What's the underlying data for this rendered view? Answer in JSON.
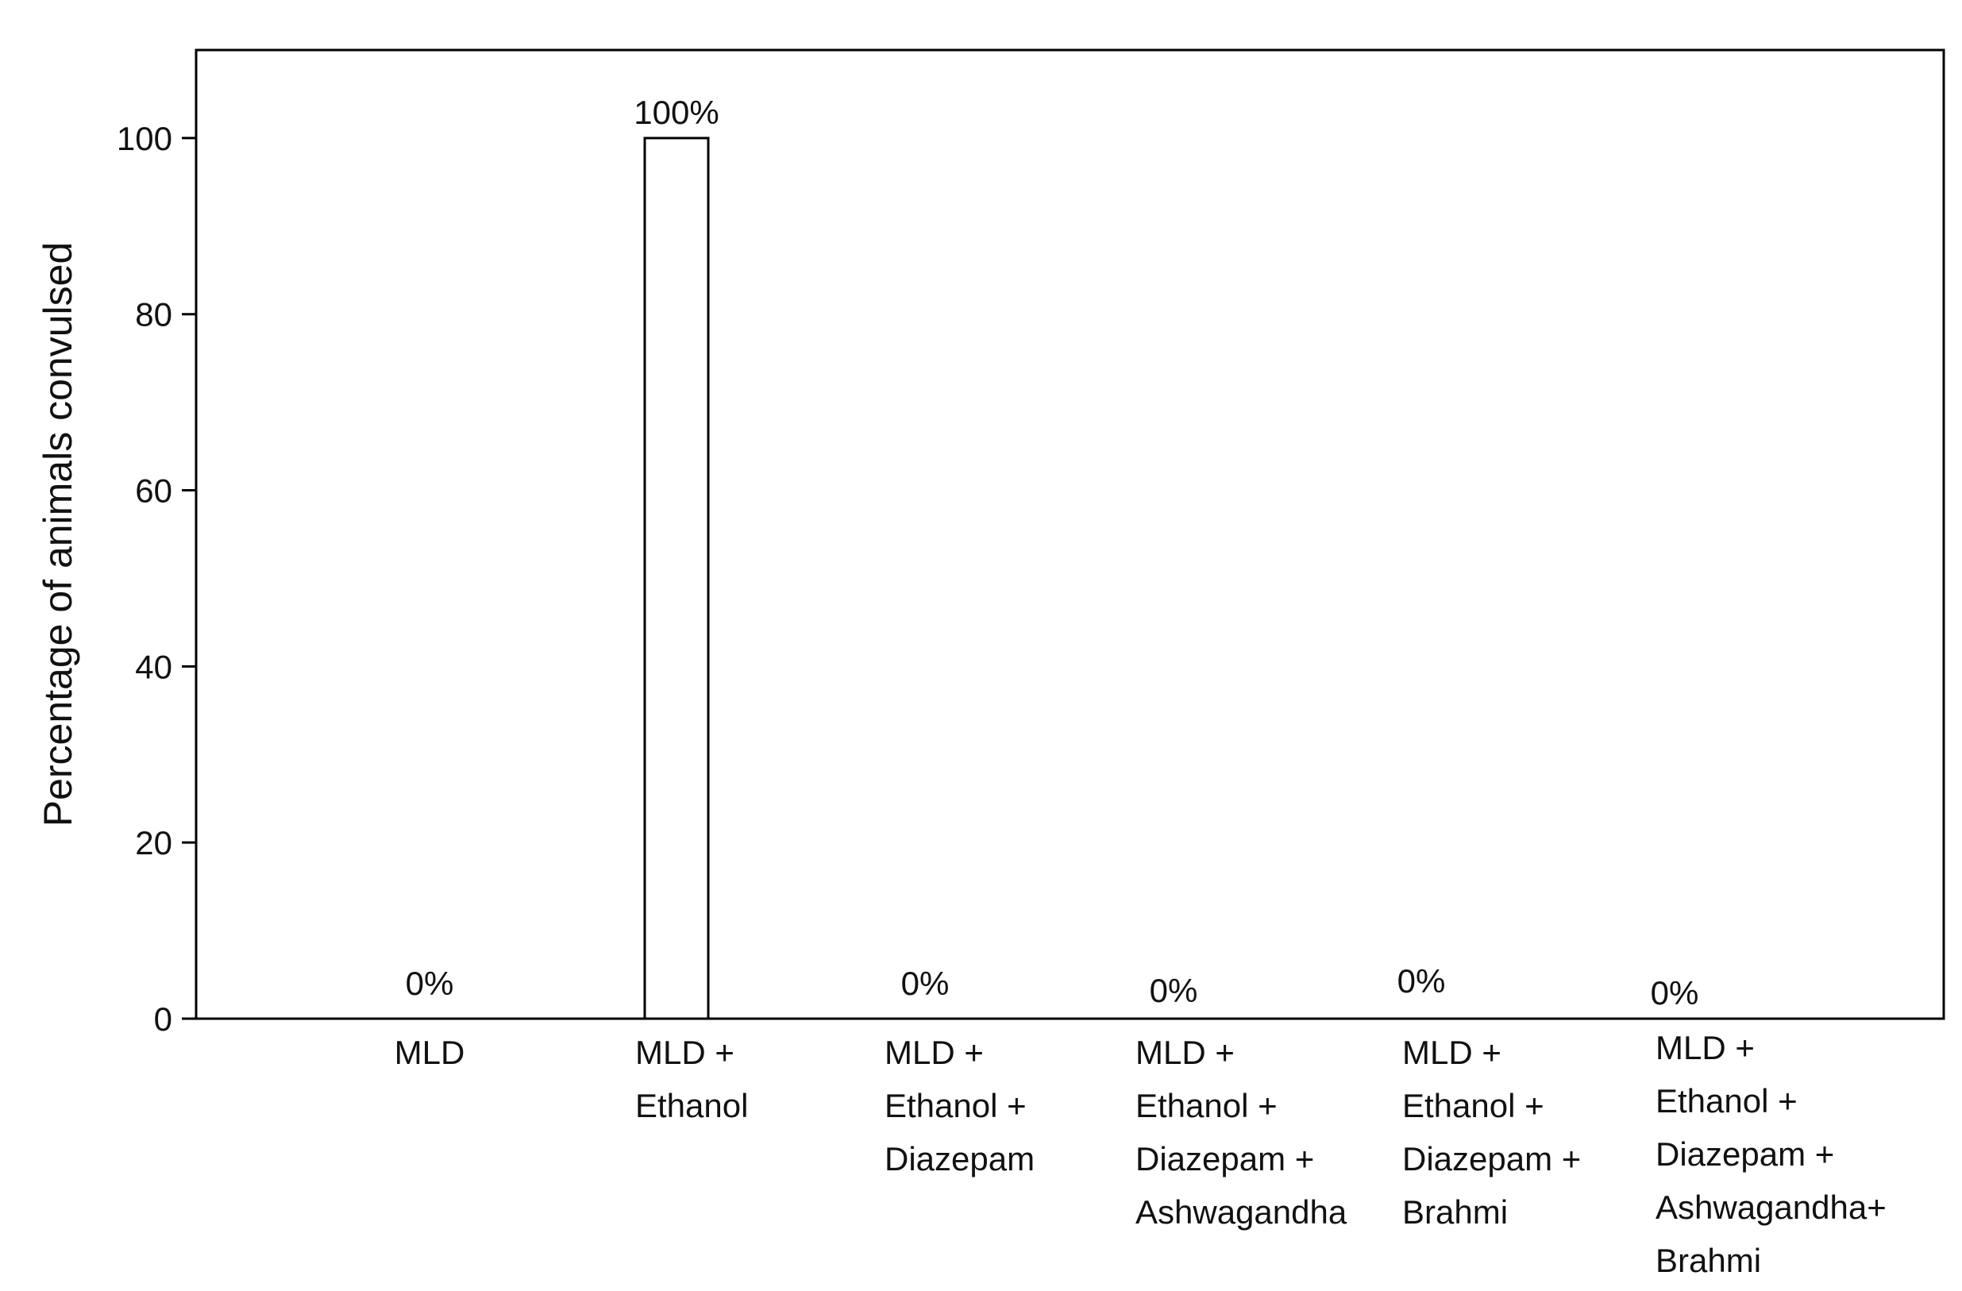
{
  "chart_data": {
    "type": "bar",
    "title": "",
    "xlabel": "",
    "ylabel": "Percentage of animals convulsed",
    "ylim": [
      0,
      110
    ],
    "yticks": [
      "0",
      "20",
      "40",
      "60",
      "80",
      "100"
    ],
    "grid": false,
    "legend": "none",
    "categories": [
      [
        "MLD"
      ],
      [
        "MLD +",
        "Ethanol"
      ],
      [
        "MLD +",
        "Ethanol +",
        "Diazepam"
      ],
      [
        "MLD +",
        "Ethanol +",
        "Diazepam +",
        "Ashwagandha"
      ],
      [
        "MLD +",
        "Ethanol +",
        "Diazepam +",
        "Brahmi"
      ],
      [
        "MLD +",
        "Ethanol +",
        "Diazepam +",
        "Ashwagandha+",
        "Brahmi"
      ]
    ],
    "values": [
      0,
      100,
      0,
      0,
      0,
      0
    ],
    "data_labels": [
      "0%",
      "100%",
      "0%",
      "0%",
      "0%",
      "0%"
    ],
    "bar_fill": "#ffffff",
    "bar_stroke": "#000000",
    "axis_color": "#000000"
  }
}
